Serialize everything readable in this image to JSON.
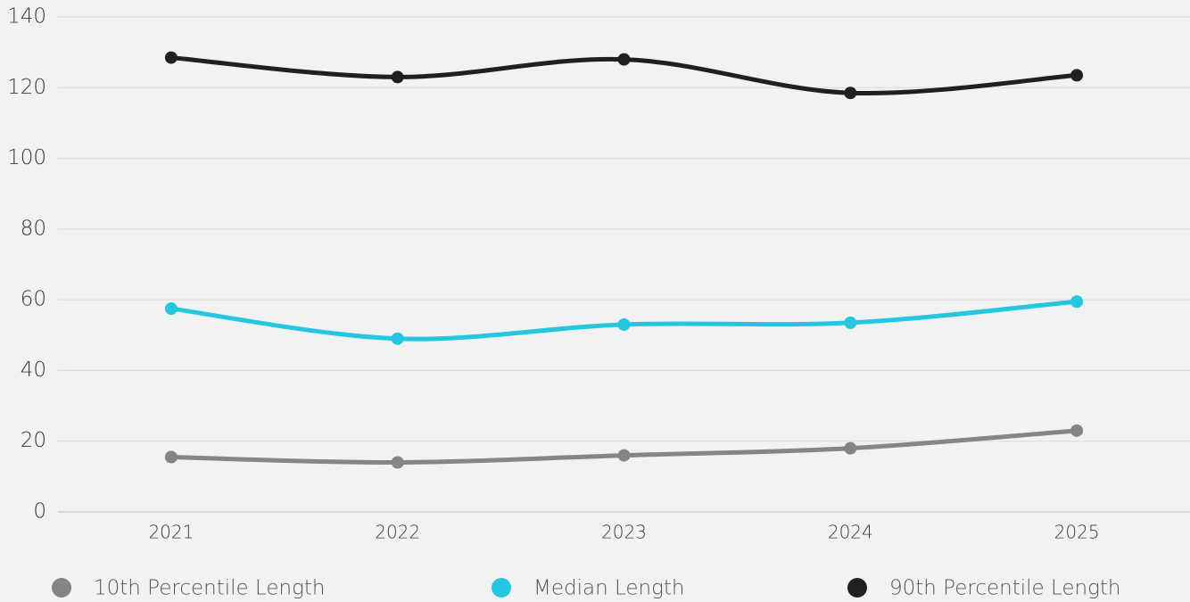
{
  "chart_data": {
    "type": "line",
    "categories": [
      "2021",
      "2022",
      "2023",
      "2024",
      "2025"
    ],
    "series": [
      {
        "name": "10th Percentile Length",
        "color": "#858585",
        "values": [
          15.5,
          14,
          16,
          18,
          23
        ]
      },
      {
        "name": "Median Length",
        "color": "#26c6e0",
        "values": [
          57.5,
          49,
          53,
          53.5,
          59.5
        ]
      },
      {
        "name": "90th Percentile Length",
        "color": "#231f20",
        "values": [
          128.5,
          123,
          128,
          118.5,
          123.5
        ]
      }
    ],
    "ylim": [
      0,
      140
    ],
    "yticks": [
      0,
      20,
      40,
      60,
      80,
      100,
      120,
      140
    ],
    "grid": true
  }
}
